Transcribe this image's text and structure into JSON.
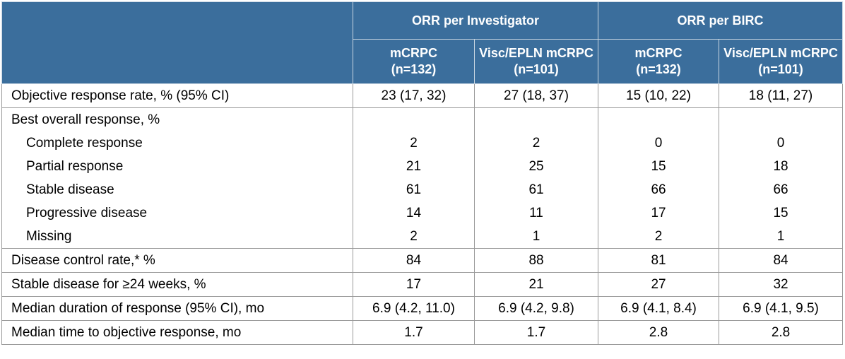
{
  "header": {
    "groups": [
      "ORR per Investigator",
      "ORR per BIRC"
    ],
    "columns": [
      {
        "name": "mCRPC",
        "n": "(n=132)"
      },
      {
        "name": "Visc/EPLN mCRPC",
        "n": "(n=101)"
      },
      {
        "name": "mCRPC",
        "n": "(n=132)"
      },
      {
        "name": "Visc/EPLN mCRPC",
        "n": "(n=101)"
      }
    ]
  },
  "rows": [
    {
      "label": "Objective response rate, % (95% CI)",
      "values": [
        "23 (17, 32)",
        "27 (18, 37)",
        "15 (10, 22)",
        "18 (11, 27)"
      ]
    },
    {
      "label": "Best overall response, %",
      "values": [
        "",
        "",
        "",
        ""
      ]
    },
    {
      "label": "Complete response",
      "values": [
        "2",
        "2",
        "0",
        "0"
      ]
    },
    {
      "label": "Partial response",
      "values": [
        "21",
        "25",
        "15",
        "18"
      ]
    },
    {
      "label": "Stable disease",
      "values": [
        "61",
        "61",
        "66",
        "66"
      ]
    },
    {
      "label": "Progressive disease",
      "values": [
        "14",
        "11",
        "17",
        "15"
      ]
    },
    {
      "label": "Missing",
      "values": [
        "2",
        "1",
        "2",
        "1"
      ]
    },
    {
      "label": "Disease control rate,* %",
      "values": [
        "84",
        "88",
        "81",
        "84"
      ]
    },
    {
      "label": "Stable disease for ≥24 weeks, %",
      "values": [
        "17",
        "21",
        "27",
        "32"
      ]
    },
    {
      "label": "Median duration of response (95% CI), mo",
      "values": [
        "6.9 (4.2, 11.0)",
        "6.9 (4.2, 9.8)",
        "6.9 (4.1, 8.4)",
        "6.9 (4.1, 9.5)"
      ]
    },
    {
      "label": "Median time to objective response, mo",
      "values": [
        "1.7",
        "1.7",
        "2.8",
        "2.8"
      ]
    }
  ]
}
